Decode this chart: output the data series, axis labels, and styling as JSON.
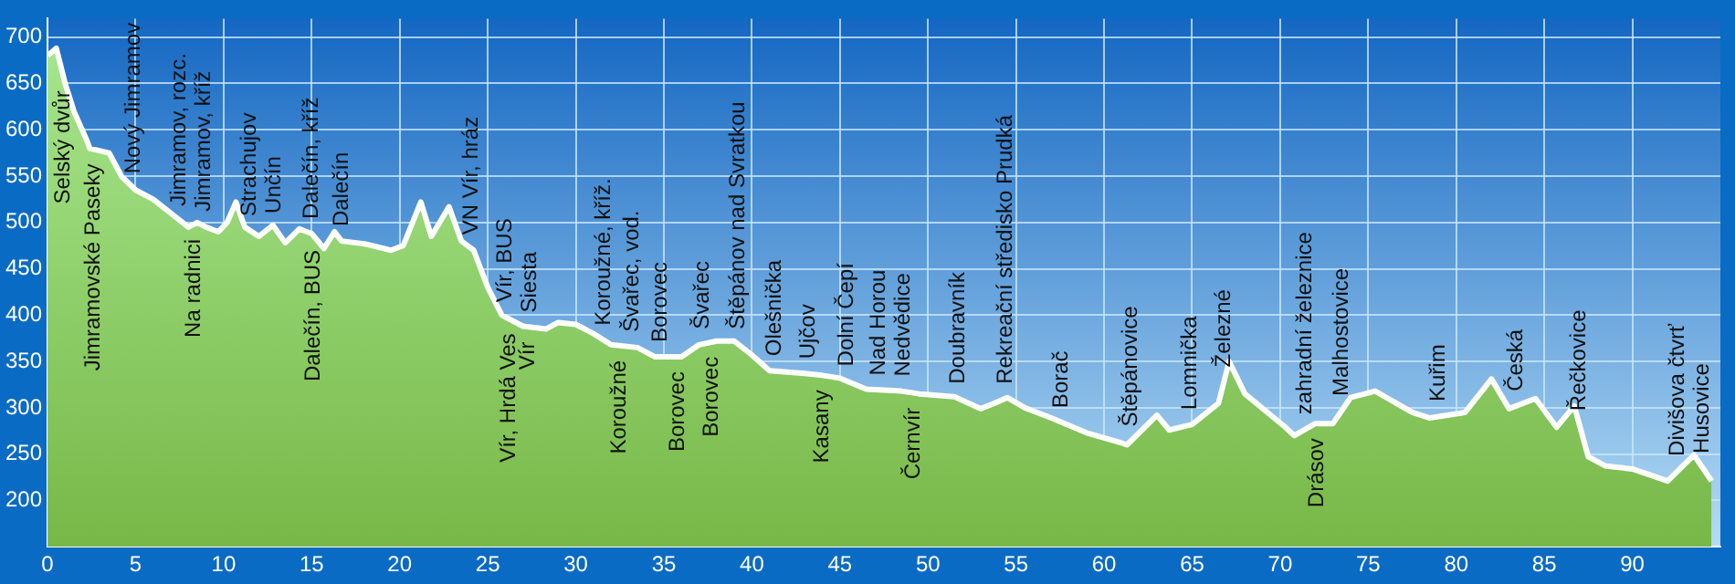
{
  "chart_data": {
    "type": "area",
    "color": "#78b848",
    "x": [
      0,
      0.5,
      1,
      1.5,
      2.2,
      2.4,
      3.5,
      4.2,
      5,
      6,
      7,
      8,
      8.5,
      9,
      9.7,
      10.2,
      10.7,
      11.2,
      12,
      12.8,
      13.5,
      14.3,
      15,
      15.7,
      16.3,
      16.7,
      18,
      19.5,
      20.2,
      21.2,
      21.8,
      22.8,
      23.5,
      24.2,
      25,
      25.8,
      27,
      28.3,
      29,
      30,
      31,
      32,
      33.5,
      34.5,
      36,
      37,
      38,
      39,
      40,
      41,
      43,
      44,
      45,
      46.5,
      48.5,
      49.5,
      51.5,
      53,
      53.8,
      54.5,
      55.5,
      57,
      59,
      61,
      61.3,
      63,
      63.7,
      65,
      66.5,
      67.1,
      68,
      70.3,
      70.8,
      72,
      73,
      74,
      75.4,
      77.5,
      78.5,
      80.5,
      82,
      83,
      84.5,
      85.7,
      86.7,
      87.5,
      88.5,
      90,
      92,
      93.5,
      94.5
    ],
    "values": [
      680,
      688,
      650,
      620,
      590,
      580,
      575,
      550,
      535,
      525,
      510,
      495,
      500,
      495,
      490,
      500,
      522,
      495,
      485,
      497,
      478,
      493,
      488,
      472,
      490,
      480,
      477,
      470,
      475,
      522,
      485,
      517,
      480,
      470,
      430,
      400,
      388,
      385,
      392,
      390,
      380,
      368,
      365,
      355,
      355,
      368,
      372,
      372,
      357,
      340,
      337,
      335,
      332,
      320,
      318,
      315,
      312,
      299,
      305,
      311,
      300,
      289,
      273,
      262,
      260,
      292,
      276,
      282,
      305,
      350,
      315,
      279,
      270,
      283,
      283,
      311,
      318,
      295,
      289,
      295,
      331,
      299,
      310,
      279,
      302,
      247,
      237,
      234,
      221,
      249,
      221
    ],
    "xlim": [
      0,
      95
    ],
    "ylim": [
      150,
      720
    ],
    "xticks": [
      0,
      5,
      10,
      15,
      20,
      25,
      30,
      35,
      40,
      45,
      50,
      55,
      60,
      65,
      70,
      75,
      80,
      85,
      90
    ],
    "yticks": [
      200,
      250,
      300,
      350,
      400,
      450,
      500,
      550,
      600,
      650,
      700
    ],
    "grid": true,
    "marker": "none",
    "legend": false,
    "annotations": [
      {
        "text": "Selský dvůr",
        "x": 0.9,
        "y": 658
      },
      {
        "text": "Jimramovské Paseky",
        "x": 2.6,
        "y": 579
      },
      {
        "text": "Nový Jimramov",
        "x": 4.9,
        "y": 537
      },
      {
        "text": "Jimramov, rozc.",
        "x": 7.5,
        "y": 502
      },
      {
        "text": "Na radnici",
        "x": 8.3,
        "y": 498
      },
      {
        "text": "Jimramov, kříž",
        "x": 8.9,
        "y": 496
      },
      {
        "text": "Strachujov",
        "x": 11.5,
        "y": 491
      },
      {
        "text": "Unčín",
        "x": 12.9,
        "y": 494
      },
      {
        "text": "Dalečín, kříž",
        "x": 15.0,
        "y": 488
      },
      {
        "text": "Dalečín, BUS",
        "x": 15.1,
        "y": 486
      },
      {
        "text": "Dalečín",
        "x": 16.7,
        "y": 480
      },
      {
        "text": "VN Vír, hráz",
        "x": 24.1,
        "y": 471
      },
      {
        "text": "Vír, BUS",
        "x": 26.0,
        "y": 398
      },
      {
        "text": "Vír, Hrdá Ves",
        "x": 26.2,
        "y": 396
      },
      {
        "text": "Vír",
        "x": 27.3,
        "y": 387
      },
      {
        "text": "Siesta",
        "x": 27.4,
        "y": 387
      },
      {
        "text": "Koroužné, kříž.",
        "x": 31.6,
        "y": 373
      },
      {
        "text": "Koroužné",
        "x": 32.5,
        "y": 367
      },
      {
        "text": "Švařec, vod.",
        "x": 33.2,
        "y": 366
      },
      {
        "text": "Borovec",
        "x": 34.8,
        "y": 355
      },
      {
        "text": "Borovec",
        "x": 35.8,
        "y": 355
      },
      {
        "text": "Švařec",
        "x": 37.2,
        "y": 369
      },
      {
        "text": "Borovec",
        "x": 37.7,
        "y": 371
      },
      {
        "text": "Štěpánov nad Svratkou",
        "x": 39.2,
        "y": 369
      },
      {
        "text": "Olešnička",
        "x": 41.3,
        "y": 340
      },
      {
        "text": "Ujčov",
        "x": 43.2,
        "y": 337
      },
      {
        "text": "Kasany",
        "x": 44.0,
        "y": 335
      },
      {
        "text": "Dolní Čepí",
        "x": 45.4,
        "y": 329
      },
      {
        "text": "Nad Horou",
        "x": 47.2,
        "y": 319
      },
      {
        "text": "Nedvědice",
        "x": 48.6,
        "y": 318
      },
      {
        "text": "Černvír",
        "x": 49.2,
        "y": 316
      },
      {
        "text": "Doubravník",
        "x": 51.7,
        "y": 310
      },
      {
        "text": "Rekreační středisko Prudká",
        "x": 54.4,
        "y": 310
      },
      {
        "text": "Borač",
        "x": 57.6,
        "y": 284
      },
      {
        "text": "Štěpánovice",
        "x": 61.5,
        "y": 264
      },
      {
        "text": "Lomnička",
        "x": 64.9,
        "y": 282
      },
      {
        "text": "Železné",
        "x": 66.8,
        "y": 328
      },
      {
        "text": "zahradní železnice",
        "x": 71.4,
        "y": 277
      },
      {
        "text": "Drásov",
        "x": 72.1,
        "y": 283
      },
      {
        "text": "Malhostovice",
        "x": 73.5,
        "y": 297
      },
      {
        "text": "Kuřim",
        "x": 79.0,
        "y": 291
      },
      {
        "text": "Česká",
        "x": 83.4,
        "y": 302
      },
      {
        "text": "Řečkovice",
        "x": 87.0,
        "y": 281
      },
      {
        "text": "Divišova čtvrť",
        "x": 92.6,
        "y": 232
      },
      {
        "text": "Husovice",
        "x": 94.0,
        "y": 235
      }
    ]
  }
}
